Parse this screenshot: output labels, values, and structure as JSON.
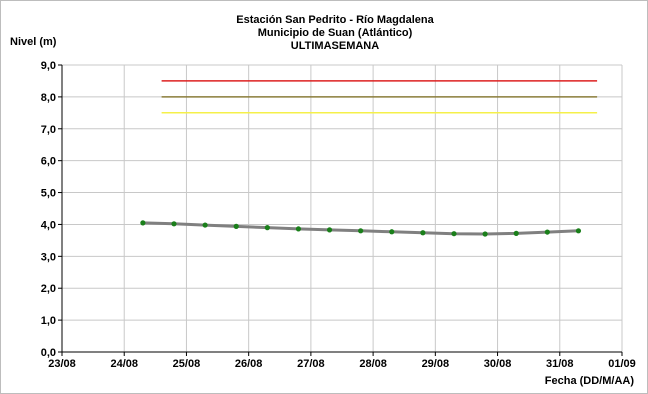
{
  "chart_data": {
    "type": "line",
    "title": [
      "Estación San Pedrito - Río Magdalena",
      "Municipio de Suan (Atlántico)",
      "ULTIMASEMANA"
    ],
    "ylabel": "Nivel (m)",
    "xlabel": "Fecha (DD/M/AA)",
    "ylim": [
      0,
      9
    ],
    "yticks": [
      "0,0",
      "1,0",
      "2,0",
      "3,0",
      "4,0",
      "5,0",
      "6,0",
      "7,0",
      "8,0",
      "9,0"
    ],
    "xticks": [
      "23/08",
      "24/08",
      "25/08",
      "26/08",
      "27/08",
      "28/08",
      "29/08",
      "30/08",
      "31/08",
      "01/09"
    ],
    "grid": true,
    "series": [
      {
        "kind": "level",
        "color": "#808080",
        "marker_color": "#1a7f1a",
        "x": [
          24.3,
          24.8,
          25.3,
          25.8,
          26.3,
          26.8,
          27.3,
          27.8,
          28.3,
          28.8,
          29.3,
          29.8,
          30.3,
          30.8,
          31.3
        ],
        "values": [
          4.05,
          4.02,
          3.98,
          3.94,
          3.9,
          3.86,
          3.83,
          3.8,
          3.77,
          3.74,
          3.71,
          3.7,
          3.72,
          3.76,
          3.8
        ]
      },
      {
        "kind": "threshold",
        "color": "#dd2020",
        "x": [
          24.6,
          31.6
        ],
        "values": [
          8.5,
          8.5
        ]
      },
      {
        "kind": "threshold",
        "color": "#8b7d3a",
        "x": [
          24.6,
          31.6
        ],
        "values": [
          8.0,
          8.0
        ]
      },
      {
        "kind": "threshold",
        "color": "#f5f04a",
        "x": [
          24.6,
          31.6
        ],
        "values": [
          7.5,
          7.5
        ]
      }
    ]
  }
}
